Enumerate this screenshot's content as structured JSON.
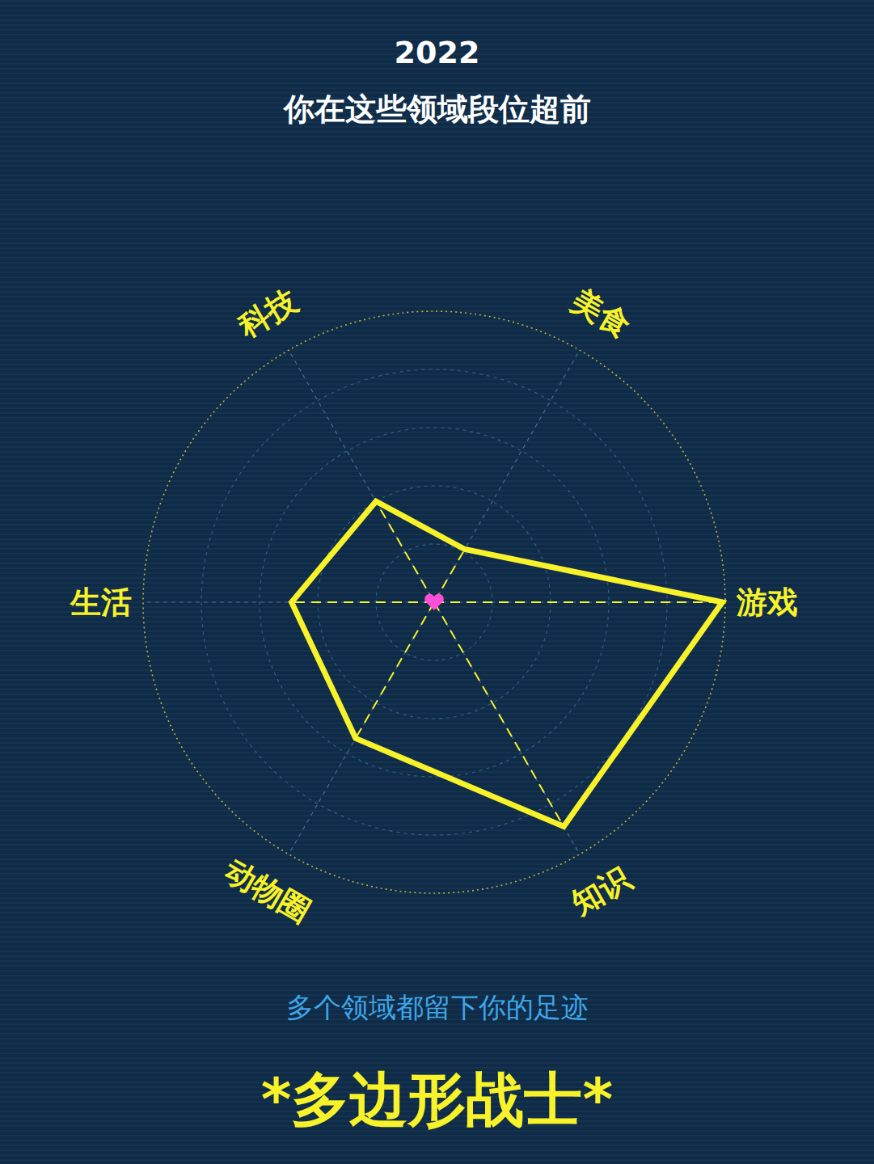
{
  "chart_data": {
    "type": "radar",
    "title": "2022",
    "subtitle": "你在这些领域段位超前",
    "categories": [
      "游戏",
      "美食",
      "科技",
      "生活",
      "动物圈",
      "知识"
    ],
    "values": [
      99,
      21,
      40,
      49,
      54,
      89
    ],
    "color": "#f7f229",
    "ylim": [
      0,
      100
    ],
    "yticks": [
      20,
      40,
      60,
      80,
      100
    ],
    "grid": true,
    "tick_labels": false,
    "annotations": [
      "多个领域都留下你的足迹",
      "*多边形战士*"
    ]
  }
}
